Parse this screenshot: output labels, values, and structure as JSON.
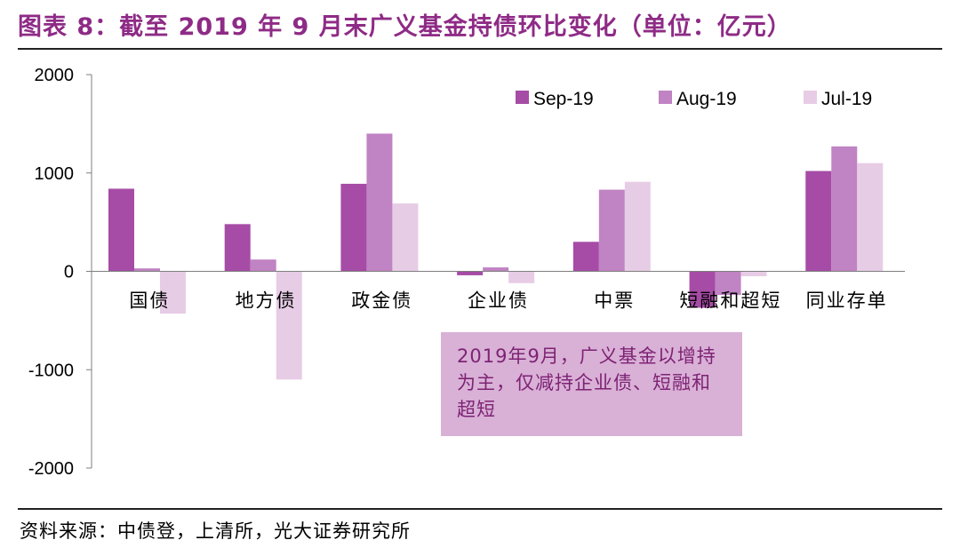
{
  "header": {
    "title": "图表 8：截至 2019 年 9 月末广义基金持债环比变化（单位：亿元）"
  },
  "footer": {
    "source": "资料来源：中债登，上清所，光大证券研究所"
  },
  "annotation": {
    "text": "2019年9月，广义基金以增持为主，仅减持企业债、短融和超短"
  },
  "colors": {
    "sep": "#a64ca6",
    "aug": "#c083c3",
    "jul": "#e7cce6",
    "title": "#8e2b86"
  },
  "chart_data": {
    "type": "bar",
    "title": "",
    "xlabel": "",
    "ylabel": "",
    "ylim": [
      -2000,
      2000
    ],
    "yticks": [
      2000,
      1000,
      0,
      -1000,
      -2000
    ],
    "grid": false,
    "legend_position": "top-right",
    "categories": [
      "国债",
      "地方债",
      "政金债",
      "企业债",
      "中票",
      "短融和超短",
      "同业存单"
    ],
    "series": [
      {
        "name": "Sep-19",
        "color": "#a64ca6",
        "values": [
          840,
          480,
          890,
          -40,
          300,
          -370,
          1020
        ]
      },
      {
        "name": "Aug-19",
        "color": "#c083c3",
        "values": [
          30,
          120,
          1400,
          40,
          830,
          -240,
          1270
        ]
      },
      {
        "name": "Jul-19",
        "color": "#e7cce6",
        "values": [
          -430,
          -1100,
          690,
          -120,
          910,
          -50,
          1100
        ]
      }
    ]
  }
}
